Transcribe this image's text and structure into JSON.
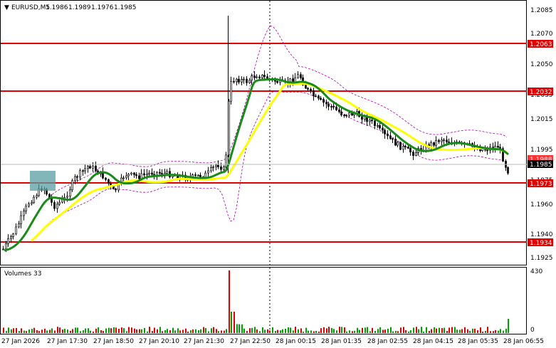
{
  "header": {
    "symbol": "EURUSD,M5",
    "open": "1.1986",
    "high": "1.1989",
    "low": "1.1976",
    "close": "1.1985"
  },
  "price_axis": [
    "1.2085",
    "1.2070",
    "1.2050",
    "1.2035",
    "1.2015",
    "1.1995",
    "1.1975",
    "1.1960",
    "1.1940",
    "1.1925"
  ],
  "time_axis": [
    "27 Jan 2026",
    "27 Jan 17:30",
    "27 Jan 18:50",
    "27 Jan 20:10",
    "27 Jan 21:30",
    "27 Jan 22:50",
    "28 Jan 00:15",
    "28 Jan 01:35",
    "28 Jan 02:55",
    "28 Jan 04:15",
    "28 Jan 05:35",
    "28 Jan 06:55"
  ],
  "levels": [
    {
      "price": "1.2063",
      "color": "#e00000"
    },
    {
      "price": "1.2032",
      "color": "#e00000"
    },
    {
      "price": "1.1973",
      "color": "#e00000"
    },
    {
      "price": "1.1934",
      "color": "#e00000"
    }
  ],
  "current_price": {
    "value": "1.1985",
    "color": "#000000"
  },
  "bid_tag": {
    "value": "1.1988",
    "color": "#ff3333"
  },
  "volume_panel": {
    "title": "Volumes 33",
    "axis_top": "430",
    "axis_bottom": "0"
  },
  "colors": {
    "ma_fast": "#1a8a1a",
    "ma_slow": "#ffff00",
    "envelope": "#b000b0",
    "level": "#e00000",
    "volume_up": "#00a000",
    "volume_down": "#e00000",
    "marker": "#5a9ea0"
  }
}
